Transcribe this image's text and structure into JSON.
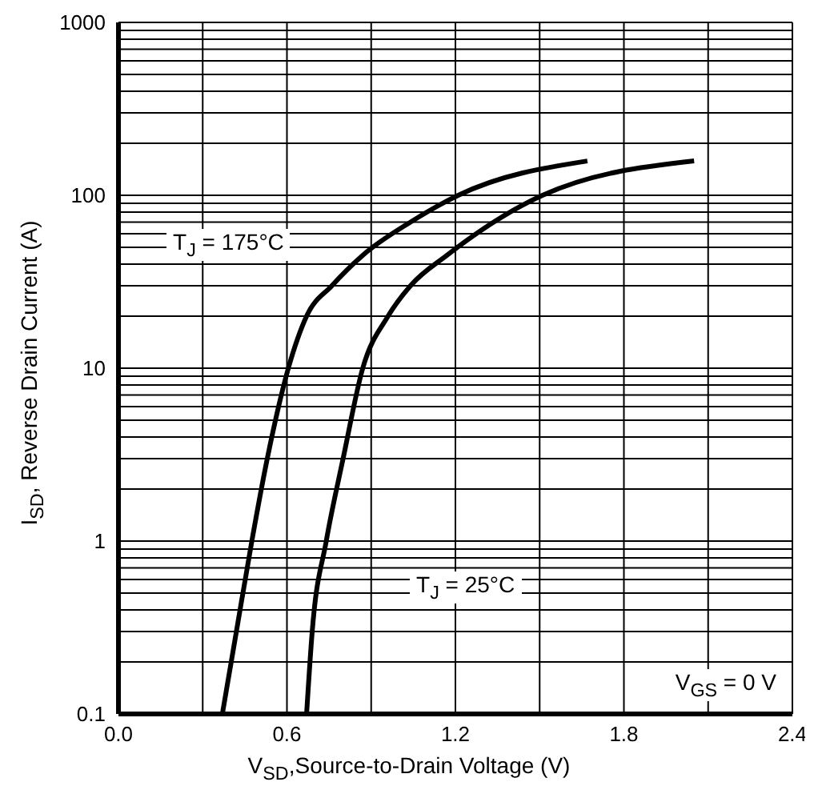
{
  "chart_data": {
    "type": "line",
    "xlabel": "V$_{SD}$,Source-to-Drain Voltage (V)",
    "ylabel": "I$_{SD}$, Reverse Drain Current (A)",
    "log": "y",
    "grid": true,
    "marker": "none",
    "line_style": "solid",
    "xlim": [
      0,
      2.4
    ],
    "ylim": [
      0.1,
      1000
    ],
    "xticks": [
      {
        "value": 0,
        "label": "0.0"
      },
      {
        "value": 0.3,
        "label": null
      },
      0.6,
      {
        "value": 0.9,
        "label": null
      },
      1.2,
      {
        "value": 1.5,
        "label": null
      },
      1.8,
      {
        "value": 2.1,
        "label": null
      },
      2.4
    ],
    "yticks": [
      0.1,
      {
        "value": 0.2,
        "label": null
      },
      {
        "value": 0.3,
        "label": null
      },
      {
        "value": 0.4,
        "label": null
      },
      {
        "value": 0.5,
        "label": null
      },
      {
        "value": 0.6,
        "label": null
      },
      {
        "value": 0.7,
        "label": null
      },
      {
        "value": 0.8,
        "label": null
      },
      {
        "value": 0.9,
        "label": null
      },
      1,
      {
        "value": 2,
        "label": null
      },
      {
        "value": 3,
        "label": null
      },
      {
        "value": 4,
        "label": null
      },
      {
        "value": 5,
        "label": null
      },
      {
        "value": 6,
        "label": null
      },
      {
        "value": 7,
        "label": null
      },
      {
        "value": 8,
        "label": null
      },
      {
        "value": 9,
        "label": null
      },
      10,
      {
        "value": 20,
        "label": null
      },
      {
        "value": 30,
        "label": null
      },
      {
        "value": 40,
        "label": null
      },
      {
        "value": 50,
        "label": null
      },
      {
        "value": 60,
        "label": null
      },
      {
        "value": 70,
        "label": null
      },
      {
        "value": 80,
        "label": null
      },
      {
        "value": 90,
        "label": null
      },
      100,
      {
        "value": 200,
        "label": null
      },
      {
        "value": 300,
        "label": null
      },
      {
        "value": 400,
        "label": null
      },
      {
        "value": 500,
        "label": null
      },
      {
        "value": 600,
        "label": null
      },
      {
        "value": 700,
        "label": null
      },
      {
        "value": 800,
        "label": null
      },
      {
        "value": 900,
        "label": null
      },
      1000
    ],
    "series": [
      {
        "color": "#000000",
        "x": [
          0.37,
          0.42,
          0.475,
          0.53,
          0.605,
          0.67,
          0.76,
          0.87,
          1.04,
          1.21,
          1.67
        ],
        "values": [
          0.1,
          0.3,
          1,
          3,
          10,
          20,
          30,
          45,
          70,
          100,
          158
        ]
      },
      {
        "color": "#000000",
        "x": [
          0.67,
          0.69,
          0.74,
          0.8,
          0.87,
          0.96,
          1.04,
          1.17,
          1.51,
          2.05
        ],
        "values": [
          0.1,
          0.3,
          1,
          3,
          10,
          20,
          30,
          45,
          100,
          158
        ]
      }
    ],
    "annotations": [
      "T$_{J}$ = 175°C",
      "T$_{J}$ = 25°C",
      "V$_{GS}$ = 0 V"
    ]
  }
}
